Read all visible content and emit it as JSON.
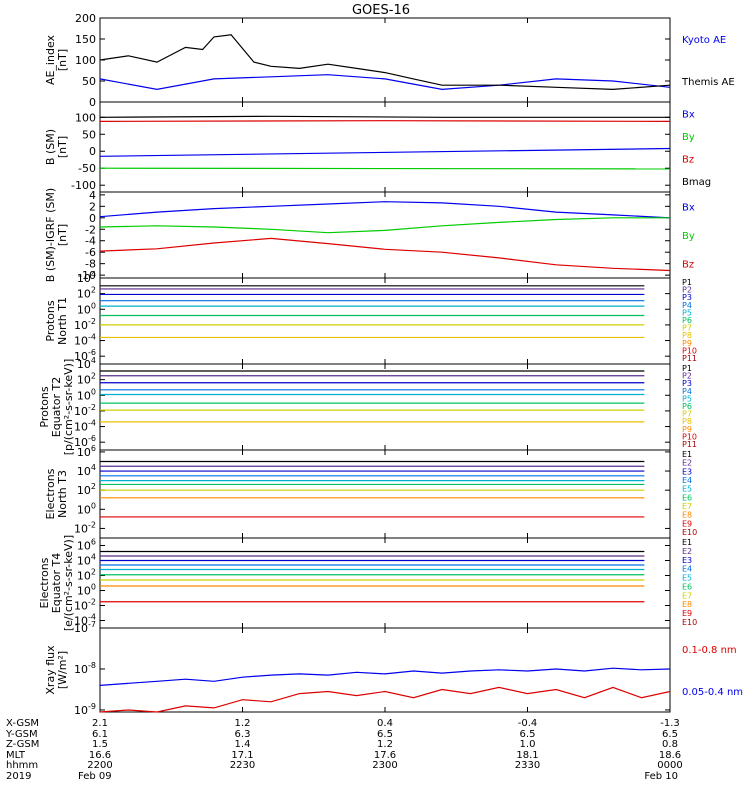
{
  "title": "GOES-16",
  "chart_data": [
    {
      "type": "line",
      "panel": "ae",
      "ylabel_lines": [
        "AE_index",
        "[nT]"
      ],
      "ylim": [
        0,
        200
      ],
      "yticks": [
        {
          "value": 0,
          "label": "0"
        },
        {
          "value": 50,
          "label": "50"
        },
        {
          "value": 100,
          "label": "100"
        },
        {
          "value": 150,
          "label": "150"
        },
        {
          "value": 200,
          "label": "200"
        }
      ],
      "series": [
        {
          "name": "Kyoto AE",
          "color": "#0000ee",
          "x": [
            0,
            0.1,
            0.2,
            0.3,
            0.4,
            0.5,
            0.6,
            0.7,
            0.8,
            0.9,
            1.0
          ],
          "values": [
            55,
            30,
            55,
            60,
            65,
            55,
            30,
            40,
            55,
            50,
            35
          ]
        },
        {
          "name": "Themis AE",
          "color": "#000000",
          "x": [
            0,
            0.05,
            0.1,
            0.15,
            0.18,
            0.2,
            0.23,
            0.27,
            0.3,
            0.35,
            0.4,
            0.45,
            0.5,
            0.55,
            0.6,
            0.7,
            0.8,
            0.9,
            1.0
          ],
          "values": [
            100,
            110,
            95,
            130,
            125,
            155,
            160,
            95,
            85,
            80,
            90,
            80,
            70,
            55,
            40,
            40,
            35,
            30,
            40
          ]
        }
      ]
    },
    {
      "type": "line",
      "panel": "b-sm",
      "ylabel_lines": [
        "B (SM)",
        "[nT]"
      ],
      "ylim": [
        -120,
        145
      ],
      "yticks": [
        {
          "value": -100,
          "label": "-100"
        },
        {
          "value": -50,
          "label": "-50"
        },
        {
          "value": 0,
          "label": "0"
        },
        {
          "value": 50,
          "label": "50"
        },
        {
          "value": 100,
          "label": "100"
        }
      ],
      "series": [
        {
          "name": "Bx",
          "color": "#0000ee",
          "x": [
            0,
            1
          ],
          "values": [
            -15,
            8
          ]
        },
        {
          "name": "By",
          "color": "#00cc00",
          "x": [
            0,
            1
          ],
          "values": [
            -50,
            -52
          ]
        },
        {
          "name": "Bz",
          "color": "#dd0000",
          "x": [
            0,
            0.5,
            1
          ],
          "values": [
            88,
            90,
            88
          ]
        },
        {
          "name": "Bmag",
          "color": "#000000",
          "x": [
            0,
            0.3,
            0.6,
            1
          ],
          "values": [
            100,
            103,
            100,
            100
          ]
        }
      ]
    },
    {
      "type": "line",
      "panel": "b-igrf",
      "ylabel_lines": [
        "B (SM)-IGRF (SM)",
        "[nT]"
      ],
      "ylim": [
        -10.5,
        4.5
      ],
      "yticks": [
        {
          "value": -10,
          "label": "-10"
        },
        {
          "value": -8,
          "label": "-8"
        },
        {
          "value": -6,
          "label": "-6"
        },
        {
          "value": -4,
          "label": "-4"
        },
        {
          "value": -2,
          "label": "-2"
        },
        {
          "value": 0,
          "label": "0"
        },
        {
          "value": 2,
          "label": "2"
        },
        {
          "value": 4,
          "label": "4"
        }
      ],
      "series": [
        {
          "name": "Bx",
          "color": "#0000ee",
          "x": [
            0,
            0.1,
            0.2,
            0.3,
            0.4,
            0.5,
            0.6,
            0.7,
            0.8,
            0.9,
            1.0
          ],
          "values": [
            0.2,
            1.0,
            1.6,
            2.0,
            2.4,
            2.8,
            2.6,
            2.0,
            1.0,
            0.5,
            0.0
          ]
        },
        {
          "name": "By",
          "color": "#00cc00",
          "x": [
            0,
            0.1,
            0.2,
            0.3,
            0.4,
            0.5,
            0.6,
            0.7,
            0.8,
            0.9,
            1.0
          ],
          "values": [
            -1.6,
            -1.4,
            -1.6,
            -2.0,
            -2.6,
            -2.2,
            -1.4,
            -0.8,
            -0.3,
            0.0,
            0.0
          ]
        },
        {
          "name": "Bz",
          "color": "#dd0000",
          "x": [
            0,
            0.1,
            0.2,
            0.3,
            0.4,
            0.5,
            0.6,
            0.7,
            0.8,
            0.9,
            1.0
          ],
          "values": [
            -5.8,
            -5.4,
            -4.4,
            -3.6,
            -4.5,
            -5.5,
            -6.0,
            -7.0,
            -8.2,
            -8.8,
            -9.2
          ]
        }
      ]
    },
    {
      "type": "line",
      "panel": "protons-north",
      "log": true,
      "ylabel_lines": [
        "Protons",
        "North T1"
      ],
      "ylim": [
        -7,
        4
      ],
      "yticks": [
        {
          "value": 4,
          "base": "10",
          "exp": "4"
        },
        {
          "value": 2,
          "base": "10",
          "exp": "2"
        },
        {
          "value": 0,
          "base": "10",
          "exp": "0"
        },
        {
          "value": -2,
          "base": "10",
          "exp": "-2"
        },
        {
          "value": -4,
          "base": "10",
          "exp": "-4"
        },
        {
          "value": -6,
          "base": "10",
          "exp": "-6"
        }
      ],
      "x_end": 0.955,
      "series": [
        {
          "name": "P1",
          "color": "#000000",
          "values": [
            3.0
          ]
        },
        {
          "name": "P2",
          "color": "#5a2e8c",
          "values": [
            2.6
          ]
        },
        {
          "name": "P3",
          "color": "#0000cc",
          "values": [
            1.9
          ]
        },
        {
          "name": "P4",
          "color": "#0070e0",
          "values": [
            1.1
          ]
        },
        {
          "name": "P5",
          "color": "#00b0d0",
          "values": [
            0.4
          ]
        },
        {
          "name": "P6",
          "color": "#00c060",
          "values": [
            -0.8
          ]
        },
        {
          "name": "P7",
          "color": "#d0d000",
          "values": [
            -2.0
          ]
        },
        {
          "name": "P8",
          "color": "#e8c000",
          "values": [
            -3.6
          ]
        },
        {
          "name": "P9",
          "color": "#ff8800",
          "values": []
        },
        {
          "name": "P10",
          "color": "#dd0000",
          "values": []
        },
        {
          "name": "P11",
          "color": "#aa0000",
          "values": []
        }
      ]
    },
    {
      "type": "line",
      "panel": "protons-equator",
      "log": true,
      "ylabel_lines": [
        "Protons",
        "Equator T2",
        "[p/(cm²-s-sr-keV)]"
      ],
      "ylim": [
        -7,
        4
      ],
      "yticks": [
        {
          "value": 4,
          "base": "10",
          "exp": "4"
        },
        {
          "value": 2,
          "base": "10",
          "exp": "2"
        },
        {
          "value": 0,
          "base": "10",
          "exp": "0"
        },
        {
          "value": -2,
          "base": "10",
          "exp": "-2"
        },
        {
          "value": -4,
          "base": "10",
          "exp": "-4"
        },
        {
          "value": -6,
          "base": "10",
          "exp": "-6"
        }
      ],
      "x_end": 0.955,
      "series": [
        {
          "name": "P1",
          "color": "#000000",
          "values": [
            3.1
          ]
        },
        {
          "name": "P2",
          "color": "#5a2e8c",
          "values": [
            2.5
          ]
        },
        {
          "name": "P3",
          "color": "#0000cc",
          "values": [
            1.6
          ]
        },
        {
          "name": "P4",
          "color": "#0070e0",
          "values": [
            0.7
          ]
        },
        {
          "name": "P5",
          "color": "#00b0d0",
          "values": [
            0.1
          ]
        },
        {
          "name": "P6",
          "color": "#00c060",
          "values": [
            -1.0
          ]
        },
        {
          "name": "P7",
          "color": "#d0d000",
          "values": [
            -1.9
          ]
        },
        {
          "name": "P8",
          "color": "#e8c000",
          "values": [
            -3.4
          ]
        },
        {
          "name": "P9",
          "color": "#ff8800",
          "values": []
        },
        {
          "name": "P10",
          "color": "#dd0000",
          "values": []
        },
        {
          "name": "P11",
          "color": "#aa0000",
          "values": []
        }
      ]
    },
    {
      "type": "line",
      "panel": "electrons-north",
      "log": true,
      "ylabel_lines": [
        "Electrons",
        "North T3"
      ],
      "ylim": [
        -3,
        6.2
      ],
      "yticks": [
        {
          "value": 6,
          "base": "10",
          "exp": "6"
        },
        {
          "value": 4,
          "base": "10",
          "exp": "4"
        },
        {
          "value": 2,
          "base": "10",
          "exp": "2"
        },
        {
          "value": 0,
          "base": "10",
          "exp": "0"
        },
        {
          "value": -2,
          "base": "10",
          "exp": "-2"
        }
      ],
      "x_end": 0.955,
      "series": [
        {
          "name": "E1",
          "color": "#000000",
          "values": [
            5.0
          ]
        },
        {
          "name": "E2",
          "color": "#5a2e8c",
          "values": [
            4.5
          ]
        },
        {
          "name": "E3",
          "color": "#0000cc",
          "values": [
            4.0
          ]
        },
        {
          "name": "E4",
          "color": "#0070e0",
          "values": [
            3.5
          ]
        },
        {
          "name": "E5",
          "color": "#00b0d0",
          "values": [
            3.0
          ]
        },
        {
          "name": "E6",
          "color": "#00c060",
          "values": [
            2.6
          ]
        },
        {
          "name": "E7",
          "color": "#d0d000",
          "values": [
            2.0
          ]
        },
        {
          "name": "E8",
          "color": "#ff8800",
          "values": [
            1.2
          ]
        },
        {
          "name": "E9",
          "color": "#dd0000",
          "values": [
            -0.8
          ]
        },
        {
          "name": "E10",
          "color": "#aa0000",
          "values": []
        }
      ]
    },
    {
      "type": "line",
      "panel": "electrons-equator",
      "log": true,
      "ylabel_lines": [
        "Electrons",
        "Equator T4",
        "[e/(cm²-s-sr-keV)]"
      ],
      "ylim": [
        -5,
        7
      ],
      "yticks": [
        {
          "value": 6,
          "base": "10",
          "exp": "6"
        },
        {
          "value": 4,
          "base": "10",
          "exp": "4"
        },
        {
          "value": 2,
          "base": "10",
          "exp": "2"
        },
        {
          "value": 0,
          "base": "10",
          "exp": "0"
        },
        {
          "value": -2,
          "base": "10",
          "exp": "-2"
        },
        {
          "value": -4,
          "base": "10",
          "exp": "-4"
        }
      ],
      "x_end": 0.955,
      "series": [
        {
          "name": "E1",
          "color": "#000000",
          "values": [
            5.2
          ]
        },
        {
          "name": "E2",
          "color": "#5a2e8c",
          "values": [
            4.6
          ]
        },
        {
          "name": "E3",
          "color": "#0000cc",
          "values": [
            4.0
          ]
        },
        {
          "name": "E4",
          "color": "#0070e0",
          "values": [
            3.4
          ]
        },
        {
          "name": "E5",
          "color": "#00b0d0",
          "values": [
            2.8
          ]
        },
        {
          "name": "E6",
          "color": "#00c060",
          "values": [
            2.1
          ]
        },
        {
          "name": "E7",
          "color": "#d0d000",
          "values": [
            1.4
          ]
        },
        {
          "name": "E8",
          "color": "#ff8800",
          "values": [
            0.6
          ]
        },
        {
          "name": "E9",
          "color": "#dd0000",
          "values": [
            -1.5
          ]
        },
        {
          "name": "E10",
          "color": "#aa0000",
          "values": []
        }
      ]
    },
    {
      "type": "line",
      "panel": "xray",
      "log": true,
      "ylabel_lines": [
        "Xray flux",
        "[W/m²]"
      ],
      "ylim": [
        -9.05,
        -7
      ],
      "yticks": [
        {
          "value": -7,
          "base": "10",
          "exp": "-7"
        },
        {
          "value": -8,
          "base": "10",
          "exp": "-8"
        },
        {
          "value": -9,
          "base": "10",
          "exp": "-9"
        }
      ],
      "series": [
        {
          "name": "0.1-0.8 nm",
          "color": "#dd0000",
          "x": [
            0,
            0.05,
            0.1,
            0.15,
            0.2,
            0.25,
            0.3,
            0.35,
            0.4,
            0.45,
            0.5,
            0.55,
            0.6,
            0.65,
            0.7,
            0.75,
            0.8,
            0.85,
            0.9,
            0.95,
            1.0
          ],
          "values": [
            -9.05,
            -9.0,
            -9.05,
            -8.9,
            -8.95,
            -8.75,
            -8.8,
            -8.6,
            -8.55,
            -8.65,
            -8.55,
            -8.7,
            -8.5,
            -8.6,
            -8.45,
            -8.6,
            -8.5,
            -8.7,
            -8.45,
            -8.7,
            -8.55
          ]
        },
        {
          "name": "0.05-0.4 nm",
          "color": "#0000ee",
          "x": [
            0,
            0.05,
            0.1,
            0.15,
            0.2,
            0.25,
            0.3,
            0.35,
            0.4,
            0.45,
            0.5,
            0.55,
            0.6,
            0.65,
            0.7,
            0.75,
            0.8,
            0.85,
            0.9,
            0.95,
            1.0
          ],
          "values": [
            -8.4,
            -8.35,
            -8.3,
            -8.25,
            -8.3,
            -8.2,
            -8.15,
            -8.12,
            -8.15,
            -8.08,
            -8.12,
            -8.05,
            -8.1,
            -8.05,
            -8.02,
            -8.05,
            -8.0,
            -8.05,
            -7.98,
            -8.02,
            -8.0
          ]
        }
      ]
    }
  ],
  "footer": {
    "row_labels": [
      "X-GSM",
      "Y-GSM",
      "Z-GSM",
      "MLT",
      "hhmm",
      "2019"
    ],
    "columns": [
      {
        "values": [
          "2.1",
          "6.1",
          "1.5",
          "16.6",
          "2200",
          "Feb 09"
        ]
      },
      {
        "values": [
          "1.2",
          "6.3",
          "1.4",
          "17.1",
          "2230",
          ""
        ]
      },
      {
        "values": [
          "0.4",
          "6.5",
          "1.2",
          "17.6",
          "2300",
          ""
        ]
      },
      {
        "values": [
          "-0.4",
          "6.5",
          "1.0",
          "18.1",
          "2330",
          ""
        ]
      },
      {
        "values": [
          "-1.3",
          "6.5",
          "0.8",
          "18.6",
          "0000",
          "Feb 10"
        ]
      }
    ]
  }
}
